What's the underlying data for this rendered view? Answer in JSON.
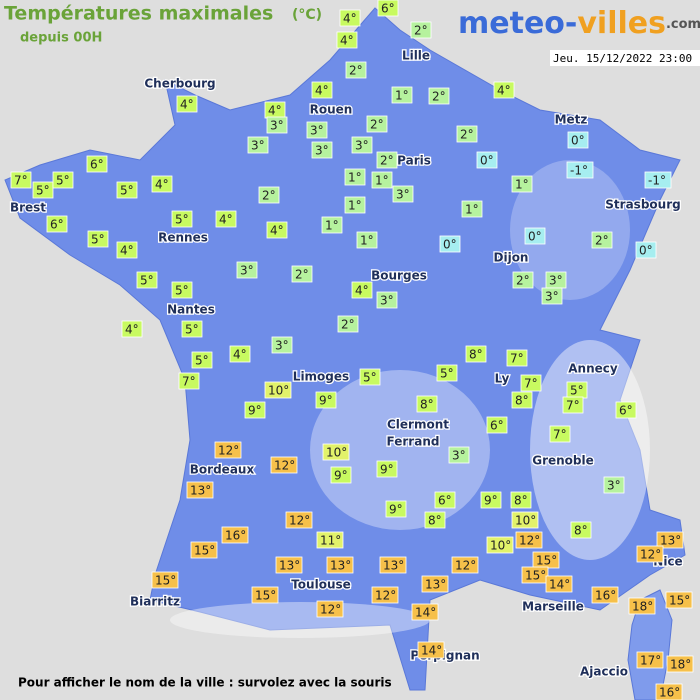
{
  "header": {
    "title": "Températures maximales",
    "unit": "(°C)",
    "subtitle": "depuis 00H"
  },
  "logo": {
    "part1": "meteo-",
    "part2": "villes",
    "suffix": ".com"
  },
  "timestamp": "Jeu. 15/12/2022 23:00",
  "footer": "Pour afficher le nom de la ville : survolez avec la souris",
  "cities": [
    "Cherbourg",
    "Lille",
    "Rouen",
    "Paris",
    "Metz",
    "Brest",
    "Rennes",
    "Strasbourg",
    "Dijon",
    "Bourges",
    "Nantes",
    "Annecy",
    "Limoges",
    "Ly",
    "Clermont",
    "Ferrand",
    "Grenoble",
    "Bordeaux",
    "Nice",
    "Toulouse",
    "Biarritz",
    "Marseille",
    "Perpignan",
    "Ajaccio"
  ],
  "temperatures": [
    "4°",
    "6°",
    "2°",
    "4°",
    "2°",
    "4°",
    "4°",
    "4°",
    "3°",
    "3°",
    "1°",
    "2°",
    "4°",
    "3°",
    "3°",
    "3°",
    "2°",
    "2°",
    "2°",
    "0°",
    "0°",
    "-1°",
    "-1°",
    "6°",
    "7°",
    "5°",
    "5°",
    "5°",
    "4°",
    "1°",
    "1°",
    "3°",
    "1°",
    "2°",
    "6°",
    "5°",
    "4°",
    "4°",
    "1°",
    "1°",
    "1°",
    "5°",
    "4°",
    "1°",
    "0°",
    "0°",
    "2°",
    "0°",
    "3°",
    "2°",
    "5°",
    "5°",
    "4°",
    "3°",
    "2°",
    "3°",
    "3°",
    "4°",
    "5°",
    "2°",
    "3°",
    "5°",
    "4°",
    "8°",
    "7°",
    "7°",
    "5°",
    "5°",
    "7°",
    "5°",
    "10°",
    "9°",
    "9°",
    "8°",
    "8°",
    "7°",
    "6°",
    "6°",
    "7°",
    "12°",
    "10°",
    "3°",
    "12°",
    "9°",
    "9°",
    "13°",
    "3°",
    "6°",
    "9°",
    "8°",
    "9°",
    "8°",
    "8°",
    "16°",
    "12°",
    "10°",
    "15°",
    "11°",
    "12°",
    "10°",
    "13°",
    "12°",
    "15°",
    "13°",
    "13°",
    "13°",
    "12°",
    "15°",
    "14°",
    "15°",
    "13°",
    "15°",
    "12°",
    "16°",
    "18°",
    "15°",
    "12°",
    "14°",
    "14°",
    "17°",
    "18°",
    "16°"
  ]
}
